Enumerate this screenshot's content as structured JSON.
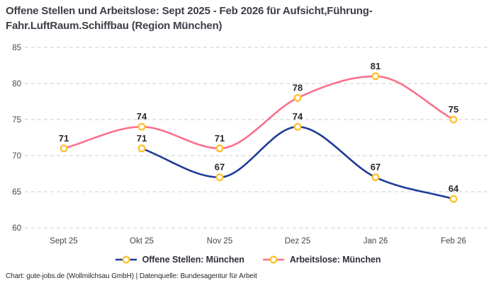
{
  "title": {
    "line1": "Offene Stellen und Arbeitslose: Sept 2025 - Feb 2026 für Aufsicht,Führung-",
    "line2": "Fahr.LuftRaum.Schiffbau (Region München)"
  },
  "footer": "Chart: gute-jobs.de (Wollmilchsau GmbH) | Datenquelle: Bundesagentur für Arbeit",
  "chart_data": {
    "type": "line",
    "categories": [
      "Sept 25",
      "Okt 25",
      "Nov 25",
      "Dez 25",
      "Jan 26",
      "Feb 26"
    ],
    "series": [
      {
        "name": "Offene Stellen: München",
        "color": "#1e3c99",
        "values": [
          null,
          71,
          67,
          74,
          67,
          64
        ]
      },
      {
        "name": "Arbeitslose: München",
        "color": "#f9718c",
        "values": [
          71,
          74,
          71,
          78,
          81,
          75
        ]
      }
    ],
    "y_ticks": [
      60,
      65,
      70,
      75,
      80,
      85
    ],
    "ylim": [
      60,
      85
    ],
    "marker": {
      "ring_color": "#fcc334",
      "fill": "#ffffff"
    },
    "grid": "dashed-horizontal",
    "grid_color": "#cccccc",
    "label_color": "#29292f",
    "tick_color": "#47474f",
    "legend_position": "bottom",
    "data_labels": true,
    "line_smoothing": "monotone"
  }
}
